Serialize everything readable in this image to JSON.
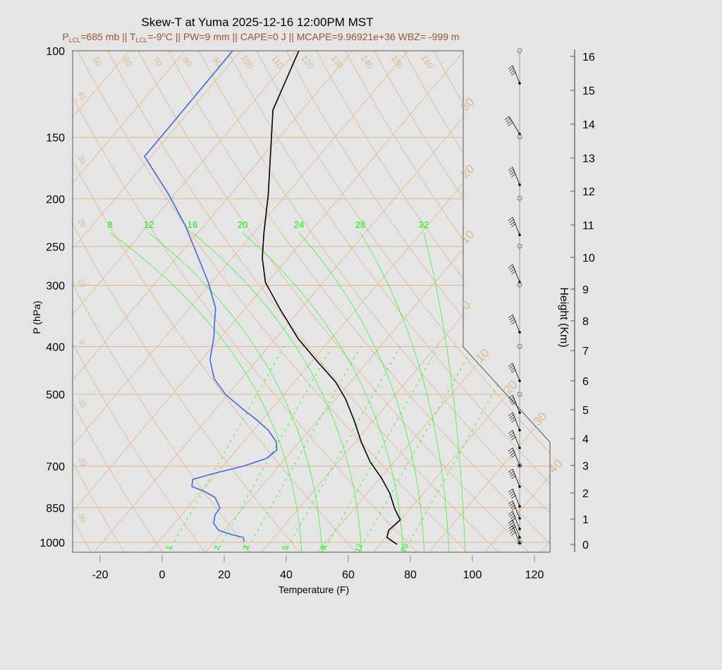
{
  "chart_data": {
    "type": "line",
    "title": "Skew-T at Yuma 2025-12-16 12:00PM MST",
    "subtitle_parts": {
      "p": "P",
      "p_sub": "LCL",
      "p_val": "=685 mb || T",
      "t_sub": "LCL",
      "t_val": "=-9",
      "deg": "o",
      "rest": "C || PW=9 mm || CAPE=0 J || MCAPE=9.96921e+36 WBZ= -999 m"
    },
    "xlabel": "Temperature (F)",
    "ylabel": "P (hPa)",
    "y2label": "Height (Km)",
    "x_ticks": [
      -20,
      0,
      20,
      40,
      60,
      80,
      100,
      120
    ],
    "y_ticks": [
      100,
      150,
      200,
      250,
      300,
      400,
      500,
      700,
      850,
      1000
    ],
    "y2_ticks": [
      0,
      1,
      2,
      3,
      4,
      5,
      6,
      7,
      8,
      9,
      10,
      11,
      12,
      13,
      14,
      15,
      16
    ],
    "y_scale": "log",
    "skewed": true,
    "dry_adiabat_labels": [
      "50",
      "60",
      "70",
      "80",
      "90",
      "100",
      "110",
      "120",
      "130",
      "140",
      "150",
      "160"
    ],
    "left_labels": [
      "40",
      "30",
      "20",
      "10",
      "0",
      "-10",
      "-20",
      "-30"
    ],
    "isotherm_labels_right": [
      "30",
      "20",
      "10",
      "0",
      "10",
      "20",
      "30",
      "40"
    ],
    "moist_adiabat_labels": [
      "8",
      "12",
      "16",
      "20",
      "24",
      "28",
      "32"
    ],
    "mixing_ratio_labels": [
      "1",
      "2",
      "3",
      "5",
      "8",
      "12",
      "20"
    ],
    "colors": {
      "temperature": "#000000",
      "dewpoint": "#4169e1",
      "grid": "#deb887",
      "moist": "#00ff00",
      "subtitle": "#a0522d"
    },
    "series": [
      {
        "key": "temperature",
        "points": [
          [
            1010,
            76.3
          ],
          [
            977,
            71.1
          ],
          [
            945,
            69.7
          ],
          [
            900,
            70.6
          ],
          [
            856,
            65.9
          ],
          [
            796,
            60.1
          ],
          [
            740,
            53.1
          ],
          [
            686,
            45.0
          ],
          [
            625,
            36.7
          ],
          [
            563,
            28.2
          ],
          [
            510,
            19.7
          ],
          [
            472,
            12.0
          ],
          [
            428,
            0.3
          ],
          [
            385,
            -12.0
          ],
          [
            335,
            -26.0
          ],
          [
            296,
            -37.9
          ],
          [
            264,
            -45.6
          ],
          [
            235,
            -51.9
          ],
          [
            196,
            -61.1
          ],
          [
            132,
            -82.7
          ],
          [
            100,
            -90.6
          ]
        ]
      },
      {
        "key": "dewpoint",
        "points": [
          [
            997,
            26.3
          ],
          [
            977,
            24.8
          ],
          [
            964,
            20.1
          ],
          [
            945,
            14.9
          ],
          [
            915,
            11.4
          ],
          [
            879,
            9.5
          ],
          [
            851,
            9.2
          ],
          [
            810,
            4.7
          ],
          [
            788,
            -0.3
          ],
          [
            770,
            -5.7
          ],
          [
            745,
            -7.4
          ],
          [
            726,
            -2.8
          ],
          [
            700,
            5.3
          ],
          [
            675,
            10.6
          ],
          [
            649,
            11.7
          ],
          [
            624,
            9.2
          ],
          [
            591,
            3.4
          ],
          [
            563,
            -3.2
          ],
          [
            536,
            -10.4
          ],
          [
            501,
            -19.9
          ],
          [
            465,
            -28.0
          ],
          [
            425,
            -34.6
          ],
          [
            382,
            -39.6
          ],
          [
            360,
            -42.9
          ],
          [
            334,
            -46.9
          ],
          [
            296,
            -56.3
          ],
          [
            227,
            -79.2
          ],
          [
            196,
            -93.2
          ],
          [
            164,
            -111.4
          ],
          [
            143,
            -111.5
          ],
          [
            100,
            -111.9
          ]
        ]
      }
    ]
  }
}
